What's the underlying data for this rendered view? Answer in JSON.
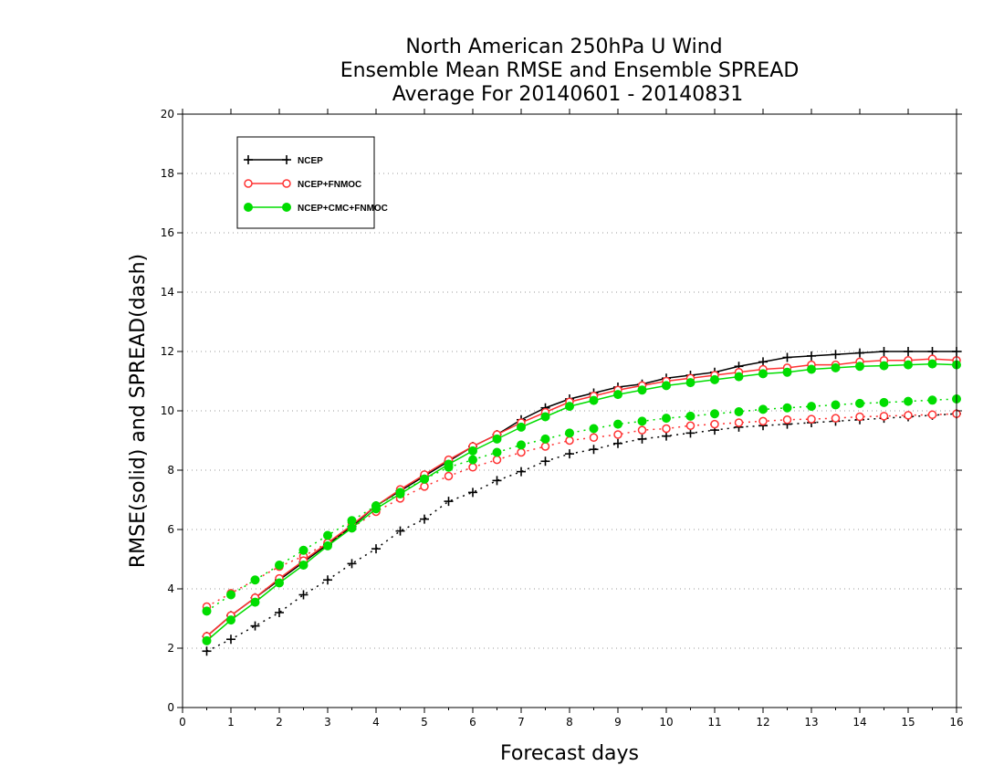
{
  "chart_data": {
    "type": "line",
    "title_lines": [
      "North American 250hPa U Wind",
      "Ensemble Mean RMSE and Ensemble SPREAD",
      "Average For 20140601 - 20140831"
    ],
    "xlabel": "Forecast days",
    "ylabel": "RMSE(solid) and SPREAD(dash)",
    "xlim": [
      0,
      16
    ],
    "ylim": [
      0,
      20
    ],
    "xticks": [
      0,
      1,
      2,
      3,
      4,
      5,
      6,
      7,
      8,
      9,
      10,
      11,
      12,
      13,
      14,
      15,
      16
    ],
    "yticks": [
      0,
      2,
      4,
      6,
      8,
      10,
      12,
      14,
      16,
      18,
      20
    ],
    "grid": "horizontal dotted",
    "legend_position": "top-left",
    "x": [
      0.5,
      1,
      1.5,
      2,
      2.5,
      3,
      3.5,
      4,
      4.5,
      5,
      5.5,
      6,
      6.5,
      7,
      7.5,
      8,
      8.5,
      9,
      9.5,
      10,
      10.5,
      11,
      11.5,
      12,
      12.5,
      13,
      13.5,
      14,
      14.5,
      15,
      15.5,
      16
    ],
    "series": [
      {
        "name": "NCEP",
        "color": "#000000",
        "marker": "plus",
        "rmse": [
          2.4,
          3.1,
          3.7,
          4.3,
          4.9,
          5.5,
          6.1,
          6.8,
          7.3,
          7.8,
          8.3,
          8.8,
          9.2,
          9.7,
          10.1,
          10.4,
          10.6,
          10.8,
          10.9,
          11.1,
          11.2,
          11.3,
          11.5,
          11.65,
          11.8,
          11.85,
          11.9,
          11.95,
          12.0,
          12.0,
          12.0,
          12.0
        ],
        "spread": [
          1.9,
          2.3,
          2.75,
          3.2,
          3.8,
          4.3,
          4.85,
          5.35,
          5.95,
          6.35,
          6.95,
          7.25,
          7.65,
          7.95,
          8.3,
          8.55,
          8.7,
          8.9,
          9.05,
          9.15,
          9.25,
          9.35,
          9.45,
          9.5,
          9.55,
          9.6,
          9.65,
          9.7,
          9.75,
          9.8,
          9.85,
          9.9
        ]
      },
      {
        "name": "NCEP+FNMOC",
        "color": "#ff3333",
        "marker": "open-circle",
        "rmse": [
          2.4,
          3.1,
          3.7,
          4.35,
          4.95,
          5.55,
          6.15,
          6.8,
          7.35,
          7.85,
          8.35,
          8.8,
          9.2,
          9.6,
          9.95,
          10.3,
          10.5,
          10.7,
          10.85,
          11.0,
          11.1,
          11.2,
          11.3,
          11.4,
          11.45,
          11.55,
          11.55,
          11.65,
          11.7,
          11.7,
          11.75,
          11.7
        ],
        "spread": [
          3.4,
          3.85,
          4.3,
          4.75,
          5.1,
          5.55,
          6.05,
          6.6,
          7.05,
          7.45,
          7.8,
          8.1,
          8.35,
          8.6,
          8.8,
          9.0,
          9.1,
          9.2,
          9.35,
          9.4,
          9.5,
          9.55,
          9.6,
          9.65,
          9.7,
          9.72,
          9.75,
          9.8,
          9.82,
          9.85,
          9.87,
          9.9
        ]
      },
      {
        "name": "NCEP+CMC+FNMOC",
        "color": "#00dd00",
        "marker": "filled-circle",
        "rmse": [
          2.25,
          2.95,
          3.55,
          4.2,
          4.8,
          5.45,
          6.05,
          6.7,
          7.2,
          7.7,
          8.2,
          8.65,
          9.05,
          9.45,
          9.8,
          10.15,
          10.35,
          10.55,
          10.7,
          10.85,
          10.95,
          11.05,
          11.15,
          11.25,
          11.3,
          11.4,
          11.45,
          11.5,
          11.52,
          11.55,
          11.58,
          11.55
        ],
        "spread": [
          3.25,
          3.8,
          4.3,
          4.8,
          5.3,
          5.8,
          6.3,
          6.8,
          7.25,
          7.7,
          8.1,
          8.35,
          8.6,
          8.85,
          9.05,
          9.25,
          9.4,
          9.55,
          9.65,
          9.75,
          9.82,
          9.9,
          9.97,
          10.05,
          10.1,
          10.15,
          10.2,
          10.25,
          10.28,
          10.32,
          10.36,
          10.4
        ]
      }
    ]
  }
}
